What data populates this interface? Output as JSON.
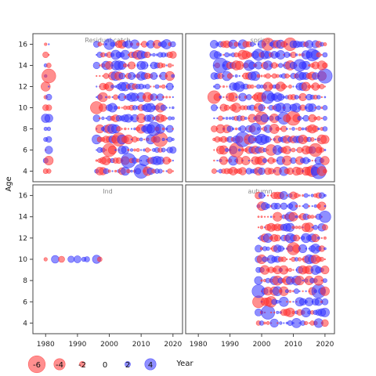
{
  "chart_data": {
    "type": "scatter",
    "subtype": "bubble-residuals",
    "xlabel": "Year",
    "ylabel": "Age",
    "xlim": [
      1976,
      2023
    ],
    "ylim": [
      3,
      17
    ],
    "xticks": [
      1980,
      1990,
      2000,
      2010,
      2020
    ],
    "yticks": [
      4,
      6,
      8,
      10,
      12,
      14,
      16
    ],
    "colors": {
      "positive": "#3333ff",
      "negative": "#ff3333"
    },
    "legend": {
      "position": "bottom-left",
      "values": [
        -6,
        -4,
        -2,
        0,
        2,
        4
      ],
      "labels": [
        "-6",
        "-4",
        "-2",
        "0",
        "2",
        "4"
      ],
      "title": "Year"
    },
    "panels": [
      {
        "name": "Residual catch",
        "x_years": [
          1980,
          1981,
          1996,
          1997,
          1998,
          1999,
          2000,
          2001,
          2002,
          2003,
          2004,
          2005,
          2006,
          2007,
          2008,
          2009,
          2010,
          2011,
          2012,
          2013,
          2014,
          2015,
          2016,
          2017,
          2018,
          2019,
          2020
        ],
        "ages": [
          4,
          16
        ],
        "seed": 11
      },
      {
        "name": "spring",
        "x_years": [
          1985,
          1986,
          1987,
          1988,
          1989,
          1990,
          1991,
          1992,
          1993,
          1994,
          1995,
          1996,
          1997,
          1998,
          1999,
          2000,
          2001,
          2002,
          2003,
          2004,
          2005,
          2006,
          2007,
          2008,
          2009,
          2010,
          2011,
          2012,
          2013,
          2014,
          2015,
          2016,
          2017,
          2018,
          2019,
          2020
        ],
        "ages": [
          4,
          16
        ],
        "seed": 23
      },
      {
        "name": "Ind",
        "x_years": [
          1980,
          1983,
          1985,
          1988,
          1990,
          1992,
          1993,
          1996,
          1997
        ],
        "ages": [
          10,
          10
        ],
        "seed": 37,
        "values": [
          [
            -1.2,
            2.6,
            -2.1,
            2.2,
            2.4,
            1.5,
            1.8,
            2.8,
            -1.6
          ]
        ]
      },
      {
        "name": "autumn",
        "x_years": [
          1999,
          2000,
          2001,
          2002,
          2003,
          2004,
          2005,
          2006,
          2007,
          2008,
          2009,
          2010,
          2011,
          2012,
          2013,
          2014,
          2015,
          2016,
          2017,
          2018,
          2019,
          2020
        ],
        "ages": [
          4,
          16
        ],
        "seed": 51
      }
    ]
  }
}
